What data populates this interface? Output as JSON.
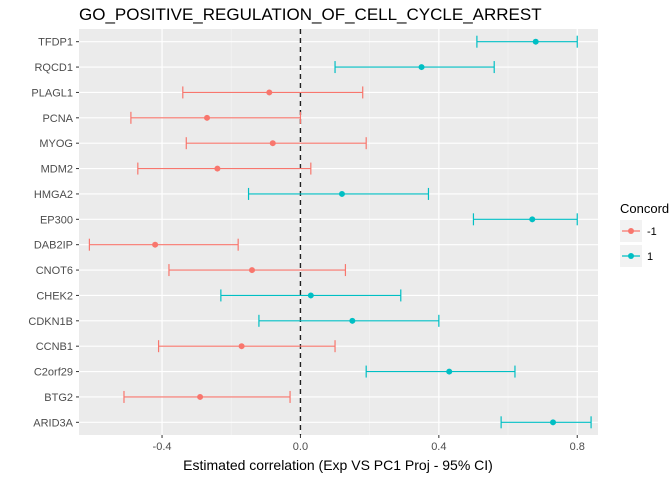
{
  "chart_data": {
    "type": "scatter",
    "title": "GO_POSITIVE_REGULATION_OF_CELL_CYCLE_ARREST",
    "xlabel": "Estimated correlation (Exp VS PC1 Proj - 95% CI)",
    "ylabel": "",
    "xlim": [
      -0.64,
      0.86
    ],
    "x_ticks": [
      -0.4,
      0.0,
      0.4,
      0.8
    ],
    "x_tick_labels": [
      "-0.4",
      "0.0",
      "0.4",
      "0.8"
    ],
    "reference_line": 0,
    "grid": true,
    "legend": {
      "title": "Concord",
      "placement": "right",
      "entries": [
        {
          "label": "-1",
          "color": "#F8766D"
        },
        {
          "label": "1",
          "color": "#00BFC4"
        }
      ]
    },
    "categories": [
      "TFDP1",
      "RQCD1",
      "PLAGL1",
      "PCNA",
      "MYOG",
      "MDM2",
      "HMGA2",
      "EP300",
      "DAB2IP",
      "CNOT6",
      "CHEK2",
      "CDKN1B",
      "CCNB1",
      "C2orf29",
      "BTG2",
      "ARID3A"
    ],
    "points": [
      {
        "gene": "TFDP1",
        "estimate": 0.68,
        "lower": 0.51,
        "upper": 0.8,
        "concord": "1"
      },
      {
        "gene": "RQCD1",
        "estimate": 0.35,
        "lower": 0.1,
        "upper": 0.56,
        "concord": "1"
      },
      {
        "gene": "PLAGL1",
        "estimate": -0.09,
        "lower": -0.34,
        "upper": 0.18,
        "concord": "-1"
      },
      {
        "gene": "PCNA",
        "estimate": -0.27,
        "lower": -0.49,
        "upper": 0.0,
        "concord": "-1"
      },
      {
        "gene": "MYOG",
        "estimate": -0.08,
        "lower": -0.33,
        "upper": 0.19,
        "concord": "-1"
      },
      {
        "gene": "MDM2",
        "estimate": -0.24,
        "lower": -0.47,
        "upper": 0.03,
        "concord": "-1"
      },
      {
        "gene": "HMGA2",
        "estimate": 0.12,
        "lower": -0.15,
        "upper": 0.37,
        "concord": "1"
      },
      {
        "gene": "EP300",
        "estimate": 0.67,
        "lower": 0.5,
        "upper": 0.8,
        "concord": "1"
      },
      {
        "gene": "DAB2IP",
        "estimate": -0.42,
        "lower": -0.61,
        "upper": -0.18,
        "concord": "-1"
      },
      {
        "gene": "CNOT6",
        "estimate": -0.14,
        "lower": -0.38,
        "upper": 0.13,
        "concord": "-1"
      },
      {
        "gene": "CHEK2",
        "estimate": 0.03,
        "lower": -0.23,
        "upper": 0.29,
        "concord": "1"
      },
      {
        "gene": "CDKN1B",
        "estimate": 0.15,
        "lower": -0.12,
        "upper": 0.4,
        "concord": "1"
      },
      {
        "gene": "CCNB1",
        "estimate": -0.17,
        "lower": -0.41,
        "upper": 0.1,
        "concord": "-1"
      },
      {
        "gene": "C2orf29",
        "estimate": 0.43,
        "lower": 0.19,
        "upper": 0.62,
        "concord": "1"
      },
      {
        "gene": "BTG2",
        "estimate": -0.29,
        "lower": -0.51,
        "upper": -0.03,
        "concord": "-1"
      },
      {
        "gene": "ARID3A",
        "estimate": 0.73,
        "lower": 0.58,
        "upper": 0.84,
        "concord": "1"
      }
    ]
  }
}
